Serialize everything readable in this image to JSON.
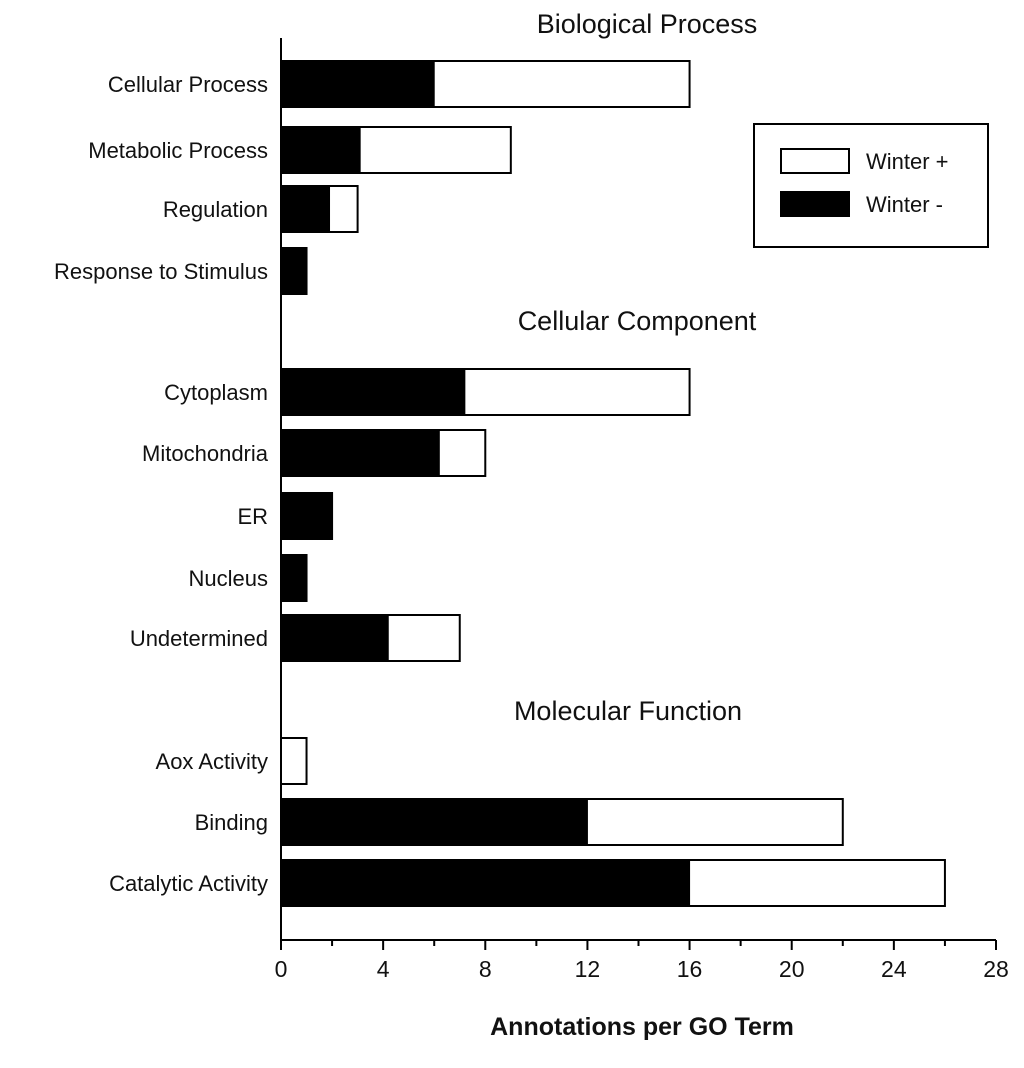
{
  "chart_data": {
    "type": "bar",
    "orientation": "horizontal",
    "stacked": true,
    "xlabel": "Annotations per GO Term",
    "ylabel": "",
    "xlim": [
      0,
      28
    ],
    "xticks": [
      "0",
      "4",
      "8",
      "12",
      "16",
      "20",
      "24",
      "28"
    ],
    "grid": false,
    "legend_position": "top-right",
    "colors": {
      "Winter -": "#000000",
      "Winter +": "#ffffff",
      "outline": "#000000"
    },
    "legend": [
      {
        "name": "Winter +",
        "color": "#ffffff"
      },
      {
        "name": "Winter -",
        "color": "#000000"
      }
    ],
    "groups": [
      {
        "title": "Biological Process",
        "categories": [
          "Cellular Process",
          "Metabolic Process",
          "Regulation",
          "Response to Stimulus"
        ]
      },
      {
        "title": "Cellular Component",
        "categories": [
          "Cytoplasm",
          "Mitochondria",
          "ER",
          "Nucleus",
          "Undetermined"
        ]
      },
      {
        "title": "Molecular Function",
        "categories": [
          "Aox Activity",
          "Binding",
          "Catalytic Activity"
        ]
      }
    ],
    "categories": [
      "Cellular Process",
      "Metabolic Process",
      "Regulation",
      "Response to Stimulus",
      "Cytoplasm",
      "Mitochondria",
      "ER",
      "Nucleus",
      "Undetermined",
      "Aox Activity",
      "Binding",
      "Catalytic Activity"
    ],
    "series": [
      {
        "name": "Winter -",
        "values": [
          6,
          3.1,
          1.9,
          1,
          7.2,
          6.2,
          2,
          1,
          4.2,
          0,
          12,
          16
        ]
      },
      {
        "name": "Winter +",
        "values": [
          10,
          5.9,
          1.1,
          0,
          8.8,
          1.8,
          0,
          0,
          2.8,
          1,
          10,
          10
        ]
      }
    ]
  }
}
